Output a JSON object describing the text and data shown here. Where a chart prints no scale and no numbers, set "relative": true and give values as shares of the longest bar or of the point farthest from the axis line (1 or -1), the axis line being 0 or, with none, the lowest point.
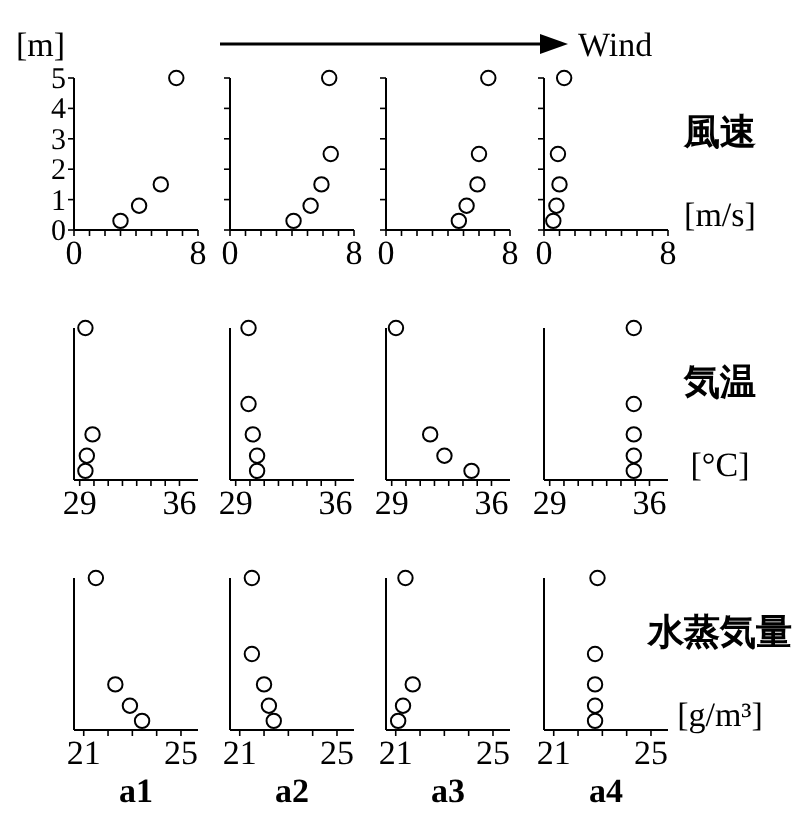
{
  "chart_data": [
    {
      "type": "scatter",
      "ylabel": "[m]",
      "annotations": [
        "Wind"
      ],
      "color": "#000000",
      "marker": "circle",
      "x": [
        3.0,
        4.2,
        5.6,
        6.6
      ],
      "values": [
        0.3,
        0.8,
        1.5,
        5
      ],
      "xlim": [
        0,
        8
      ],
      "xticks": [
        0,
        {
          "value": 1,
          "label": null
        },
        {
          "value": 2,
          "label": null
        },
        {
          "value": 3,
          "label": null
        },
        {
          "value": 4,
          "label": null
        },
        {
          "value": 5,
          "label": null
        },
        {
          "value": 6,
          "label": null
        },
        {
          "value": 7,
          "label": null
        },
        8
      ],
      "ylim": [
        0,
        5
      ],
      "yticks": [
        0,
        1,
        2,
        3,
        4,
        5
      ]
    },
    {
      "type": "scatter",
      "color": "#000000",
      "marker": "circle",
      "tick_labels": "x",
      "x": [
        4.1,
        5.2,
        5.9,
        6.5,
        6.4
      ],
      "values": [
        0.3,
        0.8,
        1.5,
        2.5,
        5
      ],
      "xlim": [
        0,
        8
      ],
      "xticks": [
        0,
        {
          "value": 1,
          "label": null
        },
        {
          "value": 2,
          "label": null
        },
        {
          "value": 3,
          "label": null
        },
        {
          "value": 4,
          "label": null
        },
        {
          "value": 5,
          "label": null
        },
        {
          "value": 6,
          "label": null
        },
        {
          "value": 7,
          "label": null
        },
        8
      ],
      "ylim": [
        0,
        5
      ],
      "yticks": [
        {
          "value": 0,
          "label": null
        },
        {
          "value": 1,
          "label": null
        },
        {
          "value": 2,
          "label": null
        },
        {
          "value": 3,
          "label": null
        },
        {
          "value": 4,
          "label": null
        },
        {
          "value": 5,
          "label": null
        }
      ]
    },
    {
      "type": "scatter",
      "color": "#000000",
      "marker": "circle",
      "tick_labels": "x",
      "x": [
        4.7,
        5.2,
        5.9,
        6.0,
        6.6
      ],
      "values": [
        0.3,
        0.8,
        1.5,
        2.5,
        5
      ],
      "xlim": [
        0,
        8
      ],
      "xticks": [
        0,
        {
          "value": 1,
          "label": null
        },
        {
          "value": 2,
          "label": null
        },
        {
          "value": 3,
          "label": null
        },
        {
          "value": 4,
          "label": null
        },
        {
          "value": 5,
          "label": null
        },
        {
          "value": 6,
          "label": null
        },
        {
          "value": 7,
          "label": null
        },
        8
      ],
      "ylim": [
        0,
        5
      ],
      "yticks": [
        {
          "value": 0,
          "label": null
        },
        {
          "value": 1,
          "label": null
        },
        {
          "value": 2,
          "label": null
        },
        {
          "value": 3,
          "label": null
        },
        {
          "value": 4,
          "label": null
        },
        {
          "value": 5,
          "label": null
        }
      ]
    },
    {
      "type": "scatter",
      "annotations": [
        "風速",
        "[m/s]"
      ],
      "color": "#000000",
      "marker": "circle",
      "tick_labels": "x",
      "x": [
        0.6,
        0.8,
        1.0,
        0.9,
        1.3
      ],
      "values": [
        0.3,
        0.8,
        1.5,
        2.5,
        5
      ],
      "xlim": [
        0,
        8
      ],
      "xticks": [
        0,
        {
          "value": 1,
          "label": null
        },
        {
          "value": 2,
          "label": null
        },
        {
          "value": 3,
          "label": null
        },
        {
          "value": 4,
          "label": null
        },
        {
          "value": 5,
          "label": null
        },
        {
          "value": 6,
          "label": null
        },
        {
          "value": 7,
          "label": null
        },
        8
      ],
      "ylim": [
        0,
        5
      ],
      "yticks": [
        {
          "value": 0,
          "label": null
        },
        {
          "value": 1,
          "label": null
        },
        {
          "value": 2,
          "label": null
        },
        {
          "value": 3,
          "label": null
        },
        {
          "value": 4,
          "label": null
        },
        {
          "value": 5,
          "label": null
        }
      ]
    },
    {
      "type": "scatter",
      "relative": true,
      "color": "#000000",
      "marker": "circle",
      "x": [
        29.4,
        29.5,
        29.9,
        29.4
      ],
      "values": [
        0.06,
        0.16,
        0.3,
        1
      ],
      "xlim": [
        28.6,
        37.3
      ],
      "xticks": [
        29,
        {
          "value": 30,
          "label": null
        },
        {
          "value": 31,
          "label": null
        },
        {
          "value": 32,
          "label": null
        },
        {
          "value": 33,
          "label": null
        },
        {
          "value": 34,
          "label": null
        },
        {
          "value": 35,
          "label": null
        },
        36
      ]
    },
    {
      "type": "scatter",
      "relative": true,
      "color": "#000000",
      "marker": "circle",
      "x": [
        30.5,
        30.5,
        30.2,
        29.9,
        29.9
      ],
      "values": [
        0.06,
        0.16,
        0.3,
        0.5,
        1
      ],
      "xlim": [
        28.6,
        37.3
      ],
      "xticks": [
        29,
        {
          "value": 30,
          "label": null
        },
        {
          "value": 31,
          "label": null
        },
        {
          "value": 32,
          "label": null
        },
        {
          "value": 33,
          "label": null
        },
        {
          "value": 34,
          "label": null
        },
        {
          "value": 35,
          "label": null
        },
        36
      ]
    },
    {
      "type": "scatter",
      "relative": true,
      "color": "#000000",
      "marker": "circle",
      "x": [
        34.6,
        32.7,
        31.7,
        29.3
      ],
      "values": [
        0.06,
        0.16,
        0.3,
        1
      ],
      "xlim": [
        28.6,
        37.3
      ],
      "xticks": [
        29,
        {
          "value": 30,
          "label": null
        },
        {
          "value": 31,
          "label": null
        },
        {
          "value": 32,
          "label": null
        },
        {
          "value": 33,
          "label": null
        },
        {
          "value": 34,
          "label": null
        },
        {
          "value": 35,
          "label": null
        },
        36
      ]
    },
    {
      "type": "scatter",
      "relative": true,
      "annotations": [
        "気温",
        "[°C]"
      ],
      "color": "#000000",
      "marker": "circle",
      "x": [
        34.9,
        34.9,
        34.9,
        34.9,
        34.9
      ],
      "values": [
        0.06,
        0.16,
        0.3,
        0.5,
        1
      ],
      "xlim": [
        28.6,
        37.3
      ],
      "xticks": [
        29,
        {
          "value": 30,
          "label": null
        },
        {
          "value": 31,
          "label": null
        },
        {
          "value": 32,
          "label": null
        },
        {
          "value": 33,
          "label": null
        },
        {
          "value": 34,
          "label": null
        },
        {
          "value": 35,
          "label": null
        },
        36
      ]
    },
    {
      "type": "scatter",
      "relative": true,
      "xlabel": "a1",
      "color": "#000000",
      "marker": "circle",
      "x": [
        23.4,
        22.9,
        22.3,
        21.5
      ],
      "values": [
        0.06,
        0.16,
        0.3,
        1
      ],
      "xlim": [
        20.6,
        25.7
      ],
      "xticks": [
        21,
        {
          "value": 22,
          "label": null
        },
        {
          "value": 23,
          "label": null
        },
        {
          "value": 24,
          "label": null
        },
        25
      ]
    },
    {
      "type": "scatter",
      "relative": true,
      "xlabel": "a2",
      "color": "#000000",
      "marker": "circle",
      "x": [
        22.4,
        22.2,
        22.0,
        21.5,
        21.5
      ],
      "values": [
        0.06,
        0.16,
        0.3,
        0.5,
        1
      ],
      "xlim": [
        20.6,
        25.7
      ],
      "xticks": [
        21,
        {
          "value": 22,
          "label": null
        },
        {
          "value": 23,
          "label": null
        },
        {
          "value": 24,
          "label": null
        },
        25
      ]
    },
    {
      "type": "scatter",
      "relative": true,
      "xlabel": "a3",
      "color": "#000000",
      "marker": "circle",
      "x": [
        21.1,
        21.3,
        21.7,
        21.4
      ],
      "values": [
        0.06,
        0.16,
        0.3,
        1
      ],
      "xlim": [
        20.6,
        25.7
      ],
      "xticks": [
        21,
        {
          "value": 22,
          "label": null
        },
        {
          "value": 23,
          "label": null
        },
        {
          "value": 24,
          "label": null
        },
        25
      ]
    },
    {
      "type": "scatter",
      "relative": true,
      "xlabel": "a4",
      "annotations": [
        "水蒸気量",
        "[g/m³]"
      ],
      "color": "#000000",
      "marker": "circle",
      "x": [
        22.7,
        22.7,
        22.7,
        22.7,
        22.8
      ],
      "values": [
        0.06,
        0.16,
        0.3,
        0.5,
        1
      ],
      "xlim": [
        20.6,
        25.7
      ],
      "xticks": [
        21,
        {
          "value": 22,
          "label": null
        },
        {
          "value": 23,
          "label": null
        },
        {
          "value": 24,
          "label": null
        },
        25
      ]
    }
  ]
}
